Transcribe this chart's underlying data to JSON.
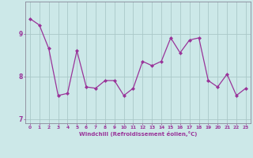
{
  "x": [
    0,
    1,
    2,
    3,
    4,
    5,
    6,
    7,
    8,
    9,
    10,
    11,
    12,
    13,
    14,
    15,
    16,
    17,
    18,
    19,
    20,
    21,
    22,
    23
  ],
  "y": [
    9.35,
    9.2,
    8.65,
    7.55,
    7.6,
    8.6,
    7.75,
    7.72,
    7.9,
    7.9,
    7.55,
    7.72,
    8.35,
    8.25,
    8.35,
    8.9,
    8.55,
    8.85,
    8.9,
    7.9,
    7.75,
    8.05,
    7.55,
    7.72
  ],
  "xlabel": "Windchill (Refroidissement éolien,°C)",
  "ylim": [
    6.9,
    9.75
  ],
  "xlim": [
    -0.5,
    23.5
  ],
  "yticks": [
    7,
    8,
    9
  ],
  "xticks": [
    0,
    1,
    2,
    3,
    4,
    5,
    6,
    7,
    8,
    9,
    10,
    11,
    12,
    13,
    14,
    15,
    16,
    17,
    18,
    19,
    20,
    21,
    22,
    23
  ],
  "line_color": "#993399",
  "marker_color": "#993399",
  "bg_color": "#cce8e8",
  "grid_color": "#aac8c8",
  "spine_color": "#888899",
  "tick_color": "#993399",
  "xlabel_color": "#993399"
}
